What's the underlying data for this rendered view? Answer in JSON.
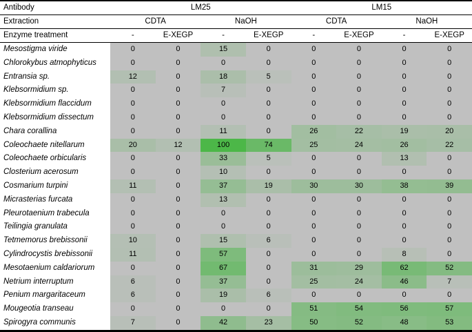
{
  "header": {
    "row1_label": "Antibody",
    "row2_label": "Extraction",
    "row3_label": "Enzyme treatment",
    "antibodies": [
      "LM25",
      "LM15"
    ],
    "extractions": [
      "CDTA",
      "NaOH",
      "CDTA",
      "NaOH"
    ],
    "treatments": [
      "-",
      "E-XEGP",
      "-",
      "E-XEGP",
      "-",
      "E-XEGP",
      "-",
      "E-XEGP"
    ]
  },
  "colors": {
    "zero_cell": "#c0c0c0",
    "max_cell": "#4cb748",
    "species_bg": "#ffffff",
    "rule_line": "#000000"
  },
  "chart_data": {
    "type": "heatmap",
    "title": "",
    "value_range": [
      0,
      100
    ],
    "columns": [
      "LM25 / CDTA / -",
      "LM25 / CDTA / E-XEGP",
      "LM25 / NaOH / -",
      "LM25 / NaOH / E-XEGP",
      "LM15 / CDTA / -",
      "LM15 / CDTA / E-XEGP",
      "LM15 / NaOH / -",
      "LM15 / NaOH / E-XEGP"
    ],
    "rows": [
      {
        "species": "Mesostigma viride",
        "values": [
          0,
          0,
          15,
          0,
          0,
          0,
          0,
          0
        ]
      },
      {
        "species": "Chlorokybus atmophyticus",
        "values": [
          0,
          0,
          0,
          0,
          0,
          0,
          0,
          0
        ]
      },
      {
        "species": "Entransia sp.",
        "values": [
          12,
          0,
          18,
          5,
          0,
          0,
          0,
          0
        ]
      },
      {
        "species": "Klebsormidium sp.",
        "values": [
          0,
          0,
          7,
          0,
          0,
          0,
          0,
          0
        ]
      },
      {
        "species": "Klebsormidium flaccidum",
        "values": [
          0,
          0,
          0,
          0,
          0,
          0,
          0,
          0
        ]
      },
      {
        "species": "Klebsormidium dissectum",
        "values": [
          0,
          0,
          0,
          0,
          0,
          0,
          0,
          0
        ]
      },
      {
        "species": "Chara corallina",
        "values": [
          0,
          0,
          11,
          0,
          26,
          22,
          19,
          20
        ]
      },
      {
        "species": "Coleochaete nitellarum",
        "values": [
          20,
          12,
          100,
          74,
          25,
          24,
          26,
          22
        ]
      },
      {
        "species": "Coleochaete orbicularis",
        "values": [
          0,
          0,
          33,
          5,
          0,
          0,
          13,
          0
        ]
      },
      {
        "species": "Closterium acerosum",
        "values": [
          0,
          0,
          10,
          0,
          0,
          0,
          0,
          0
        ]
      },
      {
        "species": "Cosmarium turpini",
        "values": [
          11,
          0,
          37,
          19,
          30,
          30,
          38,
          39
        ]
      },
      {
        "species": "Micrasterias furcata",
        "values": [
          0,
          0,
          13,
          0,
          0,
          0,
          0,
          0
        ]
      },
      {
        "species": "Pleurotaenium trabecula",
        "values": [
          0,
          0,
          0,
          0,
          0,
          0,
          0,
          0
        ]
      },
      {
        "species": "Teilingia granulata",
        "values": [
          0,
          0,
          0,
          0,
          0,
          0,
          0,
          0
        ]
      },
      {
        "species": "Tetmemorus brebissonii",
        "values": [
          10,
          0,
          15,
          6,
          0,
          0,
          0,
          0
        ]
      },
      {
        "species": "Cylindrocystis brebissonii",
        "values": [
          11,
          0,
          57,
          0,
          0,
          0,
          8,
          0
        ]
      },
      {
        "species": "Mesotaenium caldariorum",
        "values": [
          0,
          0,
          67,
          0,
          31,
          29,
          62,
          52
        ]
      },
      {
        "species": "Netrium interruptum",
        "values": [
          6,
          0,
          37,
          0,
          25,
          24,
          46,
          7
        ]
      },
      {
        "species": "Penium margaritaceum",
        "values": [
          6,
          0,
          19,
          6,
          0,
          0,
          0,
          0
        ]
      },
      {
        "species": "Mougeotia transeau",
        "values": [
          0,
          0,
          0,
          0,
          51,
          54,
          56,
          57
        ]
      },
      {
        "species": "Spirogyra communis",
        "values": [
          7,
          0,
          42,
          23,
          50,
          52,
          48,
          53
        ]
      }
    ]
  }
}
